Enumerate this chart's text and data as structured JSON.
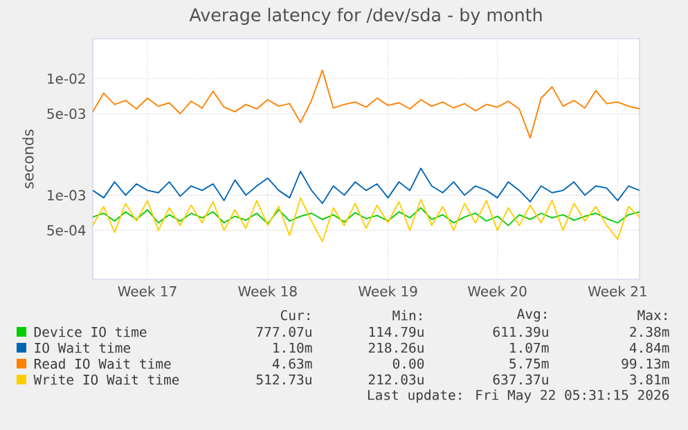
{
  "chart_data": {
    "type": "line",
    "title": "Average latency for /dev/sda - by month",
    "ylabel": "seconds",
    "log": "y",
    "grid": true,
    "legend": "bottom",
    "ylim": [
      0.00019,
      0.022
    ],
    "yticks": [
      {
        "value": 0.0005,
        "label": "5e-04"
      },
      {
        "value": 0.001,
        "label": "1e-03"
      },
      {
        "value": 0.005,
        "label": "5e-03"
      },
      {
        "value": 0.01,
        "label": "1e-02"
      }
    ],
    "categories": [
      null,
      null,
      null,
      null,
      null,
      "Week 17",
      null,
      null,
      null,
      null,
      null,
      null,
      null,
      null,
      null,
      null,
      "Week 18",
      null,
      null,
      null,
      null,
      null,
      null,
      null,
      null,
      null,
      null,
      "Week 19",
      null,
      null,
      null,
      null,
      null,
      null,
      null,
      null,
      null,
      "Week 20",
      null,
      null,
      null,
      null,
      null,
      null,
      null,
      null,
      null,
      null,
      "Week 21",
      null,
      null
    ],
    "series": [
      {
        "name": "Device IO time",
        "color": "#00cc00",
        "values": [
          0.00065,
          0.0007,
          0.0006,
          0.00072,
          0.00062,
          0.00075,
          0.00058,
          0.00068,
          0.0006,
          0.0007,
          0.00064,
          0.00072,
          0.00058,
          0.00066,
          0.00061,
          0.0007,
          0.00057,
          0.00075,
          0.0006,
          0.00066,
          0.0007,
          0.00062,
          0.00068,
          0.00059,
          0.00071,
          0.00063,
          0.00067,
          0.0006,
          0.00072,
          0.00064,
          0.00078,
          0.00062,
          0.00068,
          0.00058,
          0.00065,
          0.0007,
          0.0006,
          0.00066,
          0.00055,
          0.00068,
          0.00062,
          0.0007,
          0.00064,
          0.00068,
          0.00061,
          0.00066,
          0.0007,
          0.00063,
          0.00058,
          0.00068,
          0.00072
        ]
      },
      {
        "name": "IO Wait time",
        "color": "#0066b3",
        "values": [
          0.0011,
          0.00095,
          0.0013,
          0.001,
          0.00125,
          0.0011,
          0.00105,
          0.0013,
          0.00098,
          0.0012,
          0.0011,
          0.00125,
          0.0009,
          0.00135,
          0.001,
          0.0012,
          0.0014,
          0.0011,
          0.00095,
          0.0016,
          0.0011,
          0.00085,
          0.0012,
          0.001,
          0.0013,
          0.0011,
          0.00125,
          0.00095,
          0.0013,
          0.0011,
          0.0017,
          0.0012,
          0.00105,
          0.0013,
          0.001,
          0.0012,
          0.0011,
          0.00095,
          0.0013,
          0.0011,
          0.00088,
          0.0012,
          0.00105,
          0.0011,
          0.0013,
          0.001,
          0.0012,
          0.00115,
          0.0009,
          0.0012,
          0.0011
        ]
      },
      {
        "name": "Read IO Wait time",
        "color": "#ff8000",
        "values": [
          0.0052,
          0.0075,
          0.006,
          0.0065,
          0.0055,
          0.0068,
          0.0058,
          0.0062,
          0.005,
          0.0064,
          0.0056,
          0.0078,
          0.0057,
          0.0052,
          0.006,
          0.0055,
          0.0066,
          0.0058,
          0.0061,
          0.0042,
          0.0065,
          0.0118,
          0.0056,
          0.006,
          0.0063,
          0.0057,
          0.0068,
          0.0059,
          0.0062,
          0.0055,
          0.0066,
          0.0058,
          0.0063,
          0.0056,
          0.0061,
          0.0053,
          0.006,
          0.0057,
          0.0064,
          0.0055,
          0.0031,
          0.0068,
          0.0085,
          0.0058,
          0.0065,
          0.0056,
          0.0079,
          0.0061,
          0.0063,
          0.0058,
          0.0055
        ]
      },
      {
        "name": "Write IO Wait time",
        "color": "#ffcc00",
        "values": [
          0.00055,
          0.0008,
          0.00048,
          0.00085,
          0.0006,
          0.0009,
          0.0005,
          0.00078,
          0.00055,
          0.00082,
          0.00058,
          0.00088,
          0.0005,
          0.00075,
          0.00052,
          0.0009,
          0.00055,
          0.0008,
          0.00045,
          0.00095,
          0.0006,
          0.0004,
          0.00078,
          0.00055,
          0.00085,
          0.00052,
          0.00082,
          0.00058,
          0.00088,
          0.0005,
          0.00092,
          0.00055,
          0.0008,
          0.0005,
          0.00085,
          0.00058,
          0.0009,
          0.0005,
          0.00078,
          0.00055,
          0.00082,
          0.00058,
          0.0009,
          0.0005,
          0.00085,
          0.0006,
          0.0008,
          0.00055,
          0.00042,
          0.0008,
          0.00065
        ]
      }
    ],
    "annotations": [
      "Cur:",
      "Min:",
      "Avg:",
      "Max:",
      "777.07u",
      "114.79u",
      "611.39u",
      "2.38m",
      "1.10m",
      "218.26u",
      "1.07m",
      "4.84m",
      "4.63m",
      "0.00",
      "5.75m",
      "99.13m",
      "512.73u",
      "212.03u",
      "637.37u",
      "3.81m",
      "Last update: Fri May 22 05:31:15 2026"
    ]
  }
}
